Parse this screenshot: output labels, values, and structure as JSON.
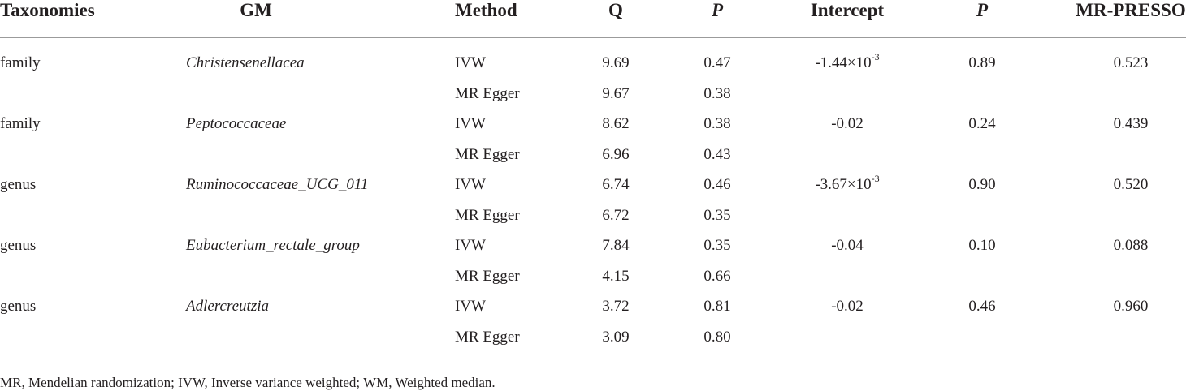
{
  "headers": {
    "taxonomies": "Taxonomies",
    "gm": "GM",
    "method": "Method",
    "q": "Q",
    "p1": "P",
    "intercept": "Intercept",
    "p2": "P",
    "mr_presso": "MR-PRESSO"
  },
  "rows": [
    {
      "taxonomy": "family",
      "gm": "Christensenellacea",
      "intercept_base": "-1.44×10",
      "intercept_exp": "-3",
      "intercept_p": "0.89",
      "mr_presso": "0.523",
      "methods": [
        {
          "method": "IVW",
          "q": "9.69",
          "p": "0.47"
        },
        {
          "method": "MR Egger",
          "q": "9.67",
          "p": "0.38"
        }
      ]
    },
    {
      "taxonomy": "family",
      "gm": "Peptococcaceae",
      "intercept_base": "-0.02",
      "intercept_exp": "",
      "intercept_p": "0.24",
      "mr_presso": "0.439",
      "methods": [
        {
          "method": "IVW",
          "q": "8.62",
          "p": "0.38"
        },
        {
          "method": "MR Egger",
          "q": "6.96",
          "p": "0.43"
        }
      ]
    },
    {
      "taxonomy": "genus",
      "gm": "Ruminococcaceae_UCG_011",
      "intercept_base": "-3.67×10",
      "intercept_exp": "-3",
      "intercept_p": "0.90",
      "mr_presso": "0.520",
      "methods": [
        {
          "method": "IVW",
          "q": "6.74",
          "p": "0.46"
        },
        {
          "method": "MR Egger",
          "q": "6.72",
          "p": "0.35"
        }
      ]
    },
    {
      "taxonomy": "genus",
      "gm": "Eubacterium_rectale_group",
      "intercept_base": "-0.04",
      "intercept_exp": "",
      "intercept_p": "0.10",
      "mr_presso": "0.088",
      "methods": [
        {
          "method": "IVW",
          "q": "7.84",
          "p": "0.35"
        },
        {
          "method": "MR Egger",
          "q": "4.15",
          "p": "0.66"
        }
      ]
    },
    {
      "taxonomy": "genus",
      "gm": "Adlercreutzia",
      "intercept_base": "-0.02",
      "intercept_exp": "",
      "intercept_p": "0.46",
      "mr_presso": "0.960",
      "methods": [
        {
          "method": "IVW",
          "q": "3.72",
          "p": "0.81"
        },
        {
          "method": "MR Egger",
          "q": "3.09",
          "p": "0.80"
        }
      ]
    }
  ],
  "footnote": "MR, Mendelian randomization; IVW, Inverse variance weighted; WM, Weighted median."
}
